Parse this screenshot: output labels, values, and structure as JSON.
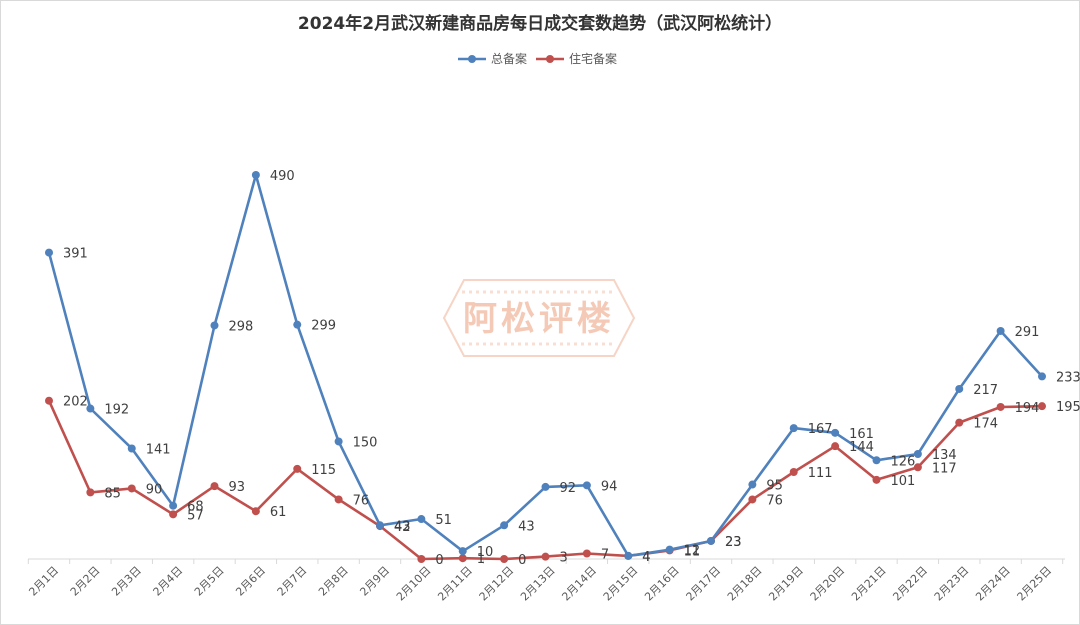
{
  "chart_data": {
    "type": "line",
    "title": "2024年2月武汉新建商品房每日成交套数趋势（武汉阿松统计）",
    "xlabel": "",
    "ylabel": "",
    "categories": [
      "2月1日",
      "2月2日",
      "2月3日",
      "2月4日",
      "2月5日",
      "2月6日",
      "2月7日",
      "2月8日",
      "2月9日",
      "2月10日",
      "2月11日",
      "2月12日",
      "2月13日",
      "2月14日",
      "2月15日",
      "2月16日",
      "2月17日",
      "2月18日",
      "2月19日",
      "2月20日",
      "2月21日",
      "2月22日",
      "2月23日",
      "2月24日",
      "2月25日"
    ],
    "series": [
      {
        "name": "总备案",
        "color": "#4f81bd",
        "values": [
          391,
          192,
          141,
          68,
          298,
          490,
          299,
          150,
          43,
          51,
          10,
          43,
          92,
          94,
          4,
          12,
          23,
          95,
          167,
          161,
          126,
          134,
          217,
          291,
          233
        ]
      },
      {
        "name": "住宅备案",
        "color": "#c0504d",
        "values": [
          202,
          85,
          90,
          57,
          93,
          61,
          115,
          76,
          42,
          0,
          1,
          0,
          3,
          7,
          4,
          11,
          23,
          76,
          111,
          144,
          101,
          117,
          174,
          194,
          195
        ]
      }
    ],
    "ylim": [
      0,
      520
    ],
    "grid": false,
    "legend_position": "top-center",
    "data_labels": true
  },
  "watermark": {
    "text": "阿松评楼",
    "color": "#f4c9b6"
  }
}
